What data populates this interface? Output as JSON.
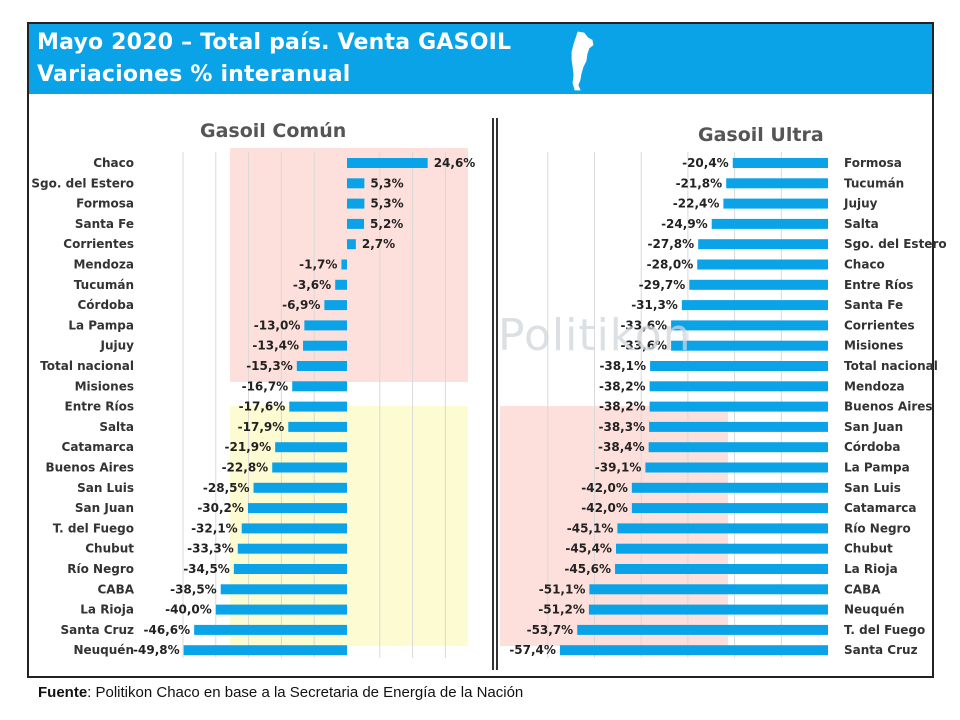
{
  "header": {
    "title_line1": "Mayo 2020 – Total país. Venta GASOIL",
    "title_line2": "Variaciones % interanual"
  },
  "watermark": "Politikon",
  "source": {
    "label": "Fuente",
    "text": ": Politikon Chaco en base a la Secretaria de Energía de la Nación"
  },
  "colors": {
    "header": "#0aa3e8",
    "bar": "#0aa3e8",
    "highlight_red": "#fde0dc",
    "highlight_yellow": "#fdfbd2"
  },
  "chart_data": [
    {
      "type": "bar",
      "orientation": "horizontal",
      "title": "Gasoil Común",
      "categories": [
        "Chaco",
        "Sgo. del Estero",
        "Formosa",
        "Santa Fe",
        "Corrientes",
        "Mendoza",
        "Tucumán",
        "Córdoba",
        "La Pampa",
        "Jujuy",
        "Total nacional",
        "Misiones",
        "Entre Ríos",
        "Salta",
        "Catamarca",
        "Buenos Aires",
        "San Luis",
        "San Juan",
        "T. del Fuego",
        "Chubut",
        "Río Negro",
        "CABA",
        "La Rioja",
        "Santa Cruz",
        "Neuquén"
      ],
      "values": [
        24.6,
        5.3,
        5.3,
        5.2,
        2.7,
        -1.7,
        -3.6,
        -6.9,
        -13.0,
        -13.4,
        -15.3,
        -16.7,
        -17.6,
        -17.9,
        -21.9,
        -22.8,
        -28.5,
        -30.2,
        -32.1,
        -33.3,
        -34.5,
        -38.5,
        -40.0,
        -46.6,
        -49.8
      ],
      "data_labels": [
        "24,6%",
        "5,3%",
        "5,3%",
        "5,2%",
        "2,7%",
        "-1,7%",
        "-3,6%",
        "-6,9%",
        "-13,0%",
        "-13,4%",
        "-15,3%",
        "-16,7%",
        "-17,6%",
        "-17,9%",
        "-21,9%",
        "-22,8%",
        "-28,5%",
        "-30,2%",
        "-32,1%",
        "-33,3%",
        "-34,5%",
        "-38,5%",
        "-40,0%",
        "-46,6%",
        "-49,8%"
      ],
      "xlim": [
        -55,
        30
      ],
      "grid": "vertical",
      "category_labels_side": "left"
    },
    {
      "type": "bar",
      "orientation": "horizontal",
      "title": "Gasoil Ultra",
      "categories": [
        "Formosa",
        "Tucumán",
        "Jujuy",
        "Salta",
        "Sgo. del Estero",
        "Chaco",
        "Entre Ríos",
        "Santa Fe",
        "Corrientes",
        "Misiones",
        "Total nacional",
        "Mendoza",
        "Buenos Aires",
        "San Juan",
        "Córdoba",
        "La Pampa",
        "San Luis",
        "Catamarca",
        "Río Negro",
        "Chubut",
        "La Rioja",
        "CABA",
        "Neuquén",
        "T. del Fuego",
        "Santa Cruz"
      ],
      "values": [
        -20.4,
        -21.8,
        -22.4,
        -24.9,
        -27.8,
        -28.0,
        -29.7,
        -31.3,
        -33.6,
        -33.6,
        -38.1,
        -38.2,
        -38.2,
        -38.3,
        -38.4,
        -39.1,
        -42.0,
        -42.0,
        -45.1,
        -45.4,
        -45.6,
        -51.1,
        -51.2,
        -53.7,
        -57.4
      ],
      "data_labels": [
        "-20,4%",
        "-21,8%",
        "-22,4%",
        "-24,9%",
        "-27,8%",
        "-28,0%",
        "-29,7%",
        "-31,3%",
        "-33,6%",
        "-33,6%",
        "-38,1%",
        "-38,2%",
        "-38,2%",
        "-38,3%",
        "-38,4%",
        "-39,1%",
        "-42,0%",
        "-42,0%",
        "-45,1%",
        "-45,4%",
        "-45,6%",
        "-51,1%",
        "-51,2%",
        "-53,7%",
        "-57,4%"
      ],
      "xlim": [
        -60,
        0
      ],
      "grid": "vertical",
      "category_labels_side": "right"
    }
  ]
}
